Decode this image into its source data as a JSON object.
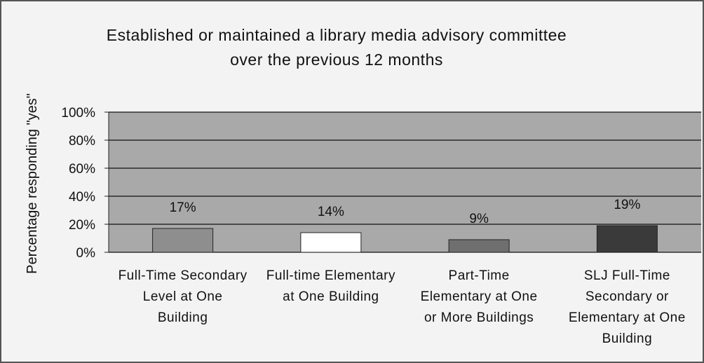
{
  "chart_data": {
    "type": "bar",
    "title": "Established or maintained a library media advisory committee over the previous 12 months",
    "y_label": "Percentage responding \"yes\"",
    "categories": [
      "Full-Time Secondary Level at One Building",
      "Full-time Elementary at One Building",
      "Part-Time Elementary at One or More Buildings",
      "SLJ Full-Time Secondary or Elementary at One Building"
    ],
    "values": [
      17,
      14,
      9,
      19
    ],
    "value_labels": [
      "17%",
      "14%",
      "9%",
      "19%"
    ],
    "colors": [
      "#8e8e8e",
      "#ffffff",
      "#6f6f6f",
      "#3a3a3a"
    ],
    "ylim": [
      0,
      100
    ],
    "yticks": [
      {
        "value": 0,
        "label": "0%"
      },
      {
        "value": 20,
        "label": "20%"
      },
      {
        "value": 40,
        "label": "40%"
      },
      {
        "value": 60,
        "label": "60%"
      },
      {
        "value": 80,
        "label": "80%"
      },
      {
        "value": 100,
        "label": "100%"
      }
    ],
    "grid": true
  }
}
